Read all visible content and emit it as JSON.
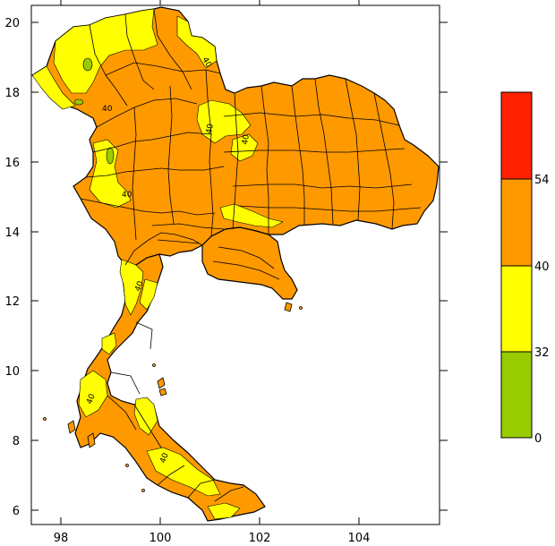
{
  "map": {
    "x_ticks": [
      "98",
      "100",
      "102",
      "104"
    ],
    "y_ticks": [
      "6",
      "8",
      "10",
      "12",
      "14",
      "16",
      "18",
      "20"
    ],
    "x_range": [
      97.4,
      105.6
    ],
    "y_range": [
      5.7,
      20.4
    ],
    "contour_labels": [
      "40",
      "40",
      "40",
      "40",
      "40",
      "40",
      "40",
      "40"
    ],
    "colors": {
      "orange": "#ff9900",
      "yellow": "#ffff00",
      "green": "#99cc00",
      "red": "#ff2200",
      "border": "#000000"
    }
  },
  "legend": {
    "ticks": [
      "54",
      "40",
      "32",
      "0"
    ],
    "bins": [
      {
        "range": [
          54,
          100
        ],
        "color": "#ff2200"
      },
      {
        "range": [
          40,
          54
        ],
        "color": "#ff9900"
      },
      {
        "range": [
          32,
          40
        ],
        "color": "#ffff00"
      },
      {
        "range": [
          0,
          32
        ],
        "color": "#99cc00"
      }
    ]
  }
}
